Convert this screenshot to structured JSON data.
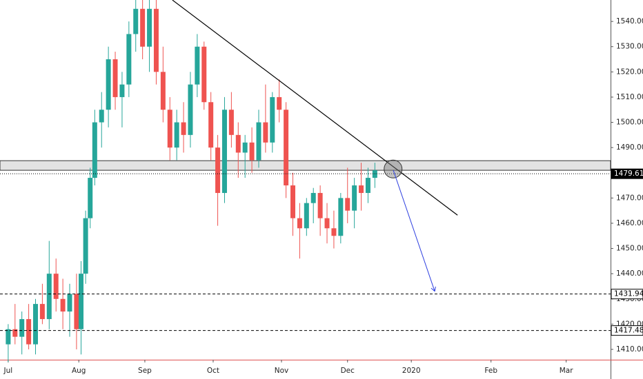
{
  "chart_data": {
    "type": "candlestick",
    "x": [
      0,
      3,
      6,
      9,
      12,
      15,
      18,
      21,
      24,
      27,
      30,
      32,
      34,
      36,
      38,
      41,
      44,
      47,
      50,
      53,
      56,
      59,
      62,
      65,
      68,
      71,
      74,
      77,
      80,
      83,
      86,
      89,
      92,
      95,
      98,
      101,
      104,
      107,
      110,
      113,
      116,
      119,
      122,
      125,
      128,
      131,
      134,
      137,
      140,
      143,
      146,
      149,
      152,
      155,
      158,
      161
    ],
    "open": [
      1412,
      1418,
      1415,
      1422,
      1412,
      1428,
      1422,
      1440,
      1430,
      1425,
      1432,
      1418,
      1440,
      1462,
      1478,
      1500,
      1505,
      1525,
      1510,
      1515,
      1535,
      1545,
      1530,
      1545,
      1520,
      1505,
      1490,
      1500,
      1495,
      1515,
      1530,
      1508,
      1490,
      1472,
      1505,
      1495,
      1488,
      1492,
      1485,
      1500,
      1492,
      1510,
      1505,
      1475,
      1462,
      1458,
      1468,
      1472,
      1462,
      1458,
      1455,
      1470,
      1465,
      1475,
      1472,
      1478
    ],
    "high": [
      1420,
      1428,
      1425,
      1428,
      1430,
      1436,
      1453,
      1446,
      1438,
      1436,
      1440,
      1445,
      1465,
      1482,
      1505,
      1512,
      1530,
      1528,
      1520,
      1540,
      1550,
      1550,
      1550,
      1550,
      1530,
      1510,
      1505,
      1508,
      1520,
      1535,
      1532,
      1512,
      1495,
      1510,
      1512,
      1500,
      1495,
      1498,
      1505,
      1515,
      1512,
      1517,
      1508,
      1480,
      1468,
      1470,
      1474,
      1475,
      1468,
      1465,
      1472,
      1482,
      1478,
      1484,
      1482,
      1484
    ],
    "low": [
      1405,
      1412,
      1408,
      1410,
      1408,
      1420,
      1418,
      1425,
      1418,
      1415,
      1410,
      1408,
      1436,
      1458,
      1475,
      1490,
      1498,
      1505,
      1498,
      1510,
      1528,
      1525,
      1520,
      1515,
      1500,
      1485,
      1485,
      1488,
      1490,
      1510,
      1505,
      1485,
      1459,
      1468,
      1490,
      1478,
      1478,
      1480,
      1482,
      1488,
      1488,
      1500,
      1470,
      1455,
      1446,
      1455,
      1460,
      1455,
      1452,
      1450,
      1452,
      1460,
      1458,
      1465,
      1468,
      1474
    ],
    "close": [
      1418,
      1415,
      1422,
      1412,
      1428,
      1422,
      1440,
      1430,
      1425,
      1432,
      1418,
      1440,
      1462,
      1478,
      1500,
      1505,
      1525,
      1510,
      1515,
      1535,
      1545,
      1530,
      1545,
      1520,
      1505,
      1490,
      1500,
      1495,
      1515,
      1530,
      1508,
      1490,
      1472,
      1505,
      1495,
      1488,
      1492,
      1485,
      1500,
      1492,
      1510,
      1505,
      1475,
      1462,
      1458,
      1468,
      1472,
      1462,
      1458,
      1455,
      1470,
      1465,
      1475,
      1472,
      1478,
      1481
    ],
    "up_color": "#26a69a",
    "down_color": "#ef5350",
    "xlim": [
      -3.6,
      264.5
    ],
    "ylim": [
      1405.9,
      1548.5
    ],
    "xticks": [
      {
        "value": 0,
        "label": "Jul"
      },
      {
        "value": 31,
        "label": "Aug"
      },
      {
        "value": 60,
        "label": "Sep"
      },
      {
        "value": 90,
        "label": "Oct"
      },
      {
        "value": 120,
        "label": "Nov"
      },
      {
        "value": 149,
        "label": "Dec"
      },
      {
        "value": 177,
        "label": "2020"
      },
      {
        "value": 212,
        "label": "Feb"
      },
      {
        "value": 245,
        "label": "Mar"
      }
    ],
    "yticks": [
      {
        "value": 1410,
        "label": "1410.00"
      },
      {
        "value": 1420,
        "label": "1420.00"
      },
      {
        "value": 1430,
        "label": "1430.00"
      },
      {
        "value": 1440,
        "label": "1440.00"
      },
      {
        "value": 1450,
        "label": "1450.00"
      },
      {
        "value": 1460,
        "label": "1460.00"
      },
      {
        "value": 1470,
        "label": "1470.00"
      },
      {
        "value": 1480,
        "label": "1480.00"
      },
      {
        "value": 1490,
        "label": "1490.00"
      },
      {
        "value": 1500,
        "label": "1500.00"
      },
      {
        "value": 1510,
        "label": "1510.00"
      },
      {
        "value": 1520,
        "label": "1520.00"
      },
      {
        "value": 1530,
        "label": "1530.00"
      },
      {
        "value": 1540,
        "label": "1540.00"
      }
    ],
    "zone": [
      1481,
      1484.8
    ],
    "levels": [
      {
        "value": 1479.61,
        "style": "dotted",
        "label_bg": "#000"
      },
      {
        "value": 1431.94,
        "style": "dashed",
        "label_bg": "#fff"
      },
      {
        "value": 1417.48,
        "style": "dashed",
        "label_bg": "#fff"
      }
    ],
    "trendline": {
      "x": [
        72.1,
        197.3
      ],
      "y": [
        1548.5,
        1463.2
      ],
      "color": "#000"
    },
    "arrow": {
      "x": [
        169.1,
        187.3
      ],
      "y": [
        1481,
        1433
      ],
      "color": "#2d3fe0"
    },
    "marker": {
      "x": 169,
      "y": 1481.5
    }
  }
}
